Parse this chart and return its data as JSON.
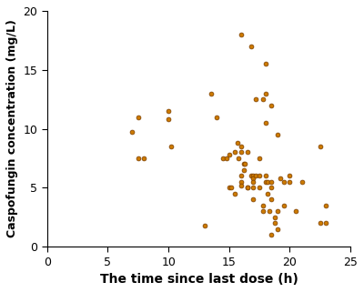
{
  "x": [
    7.0,
    7.5,
    7.5,
    8.0,
    10.0,
    10.0,
    10.2,
    13.0,
    13.5,
    14.0,
    14.5,
    14.8,
    15.0,
    15.0,
    15.2,
    15.5,
    15.5,
    15.7,
    15.8,
    16.0,
    16.0,
    16.0,
    16.0,
    16.0,
    16.0,
    16.2,
    16.2,
    16.3,
    16.5,
    16.5,
    16.5,
    16.8,
    16.8,
    17.0,
    17.0,
    17.0,
    17.0,
    17.0,
    17.2,
    17.2,
    17.5,
    17.5,
    17.5,
    17.8,
    17.8,
    17.8,
    18.0,
    18.0,
    18.0,
    18.0,
    18.0,
    18.2,
    18.2,
    18.3,
    18.5,
    18.5,
    18.5,
    18.5,
    18.5,
    18.8,
    18.8,
    19.0,
    19.0,
    19.0,
    19.2,
    19.5,
    19.5,
    20.0,
    20.0,
    20.5,
    21.0,
    22.5,
    22.5,
    23.0,
    23.0
  ],
  "y": [
    9.7,
    11.0,
    7.5,
    7.5,
    10.8,
    11.5,
    8.5,
    1.8,
    13.0,
    11.0,
    7.5,
    7.5,
    5.0,
    7.8,
    5.0,
    4.5,
    8.0,
    8.8,
    7.5,
    18.0,
    8.5,
    8.0,
    6.0,
    5.5,
    5.2,
    7.0,
    6.5,
    7.0,
    5.0,
    5.0,
    8.0,
    17.0,
    6.0,
    6.0,
    5.8,
    5.5,
    5.0,
    4.0,
    12.5,
    6.0,
    7.5,
    6.0,
    5.0,
    12.5,
    3.5,
    3.0,
    15.5,
    13.0,
    10.5,
    6.0,
    5.5,
    5.5,
    4.5,
    3.0,
    12.0,
    5.5,
    5.0,
    4.0,
    1.0,
    2.5,
    2.0,
    9.5,
    3.0,
    1.5,
    5.8,
    5.5,
    3.5,
    6.0,
    5.5,
    3.0,
    5.5,
    8.5,
    2.0,
    2.0,
    3.5
  ],
  "marker_facecolor": "#cc7a00",
  "marker_edgecolor": "#7a3d00",
  "marker_size": 3.5,
  "marker_linewidth": 0.5,
  "marker_style": "o",
  "xlabel": "The time since last dose (h)",
  "ylabel": "Caspofungin concentration (mg/L)",
  "xlim": [
    0,
    25
  ],
  "ylim": [
    0,
    20
  ],
  "xticks": [
    0,
    5,
    10,
    15,
    20,
    25
  ],
  "yticks": [
    0,
    5,
    10,
    15,
    20
  ],
  "xlabel_fontsize": 10,
  "ylabel_fontsize": 9,
  "tick_fontsize": 9,
  "figure_bg": "#ffffff",
  "axes_bg": "#ffffff"
}
